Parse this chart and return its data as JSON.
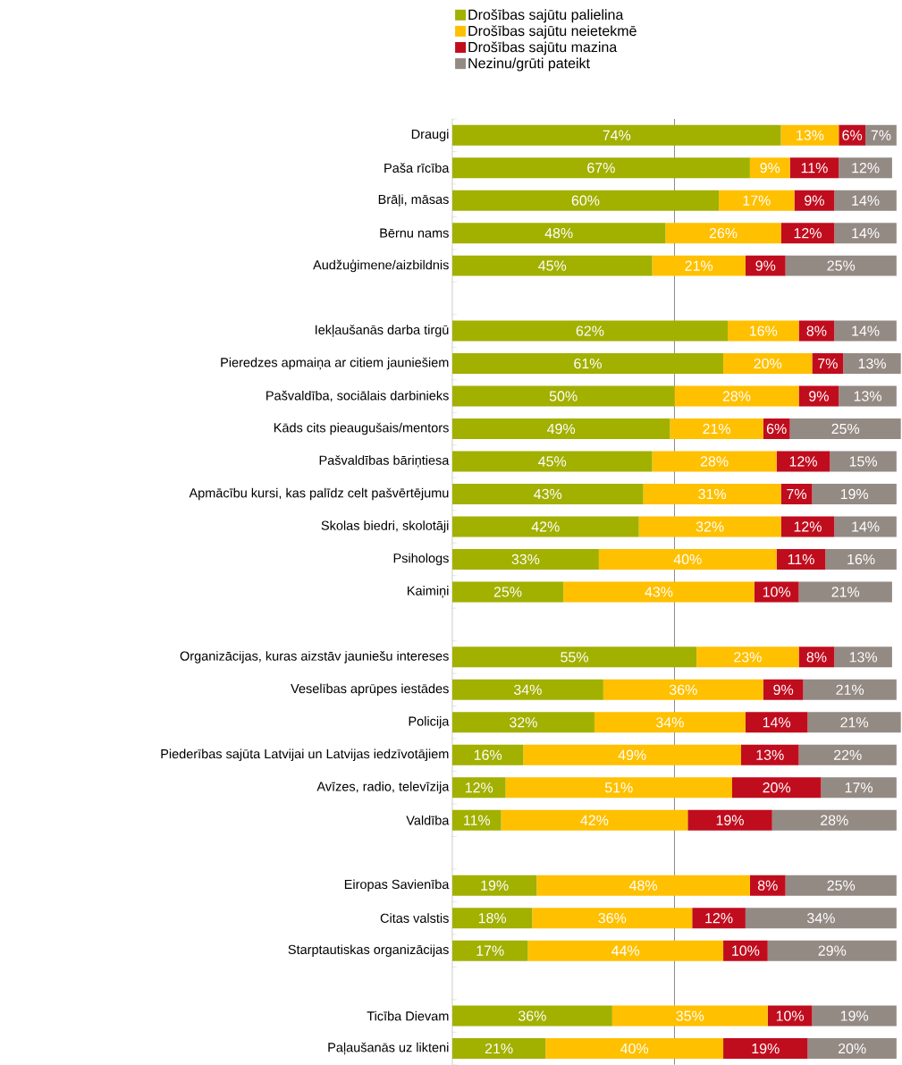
{
  "chart_data": {
    "type": "bar",
    "orientation": "horizontal",
    "stacked": true,
    "legend": "top",
    "tick_labels": "y",
    "grid": false,
    "xlim": [
      0,
      101
    ],
    "categories": [
      "Draugi",
      "Paša rīcība",
      "Brāļi, māsas",
      "Bērnu nams",
      "Audžuģimene/aizbildnis",
      null,
      "Iekļaušanās darba tirgū",
      "Pieredzes apmaiņa ar citiem jauniešiem",
      "Pašvaldība, sociālais darbinieks",
      "Kāds cits pieaugušais/mentors",
      "Pašvaldības bāriņtiesa",
      "Apmācību kursi, kas palīdz celt pašvērtējumu",
      "Skolas biedri, skolotāji",
      "Psihologs",
      "Kaimiņi",
      null,
      "Organizācijas, kuras aizstāv jauniešu intereses",
      "Veselības aprūpes iestādes",
      "Policija",
      "Piederības sajūta Latvijai un Latvijas iedzīvotājiem",
      "Avīzes, radio, televīzija",
      "Valdība",
      null,
      "Eiropas Savienība",
      "Citas valstis",
      "Starptautiskas organizācijas",
      null,
      "Ticība Dievam",
      "Paļaušanās uz likteni"
    ],
    "series": [
      {
        "name": "Drošības sajūtu palielina",
        "color": "#a2b000",
        "values": [
          74,
          67,
          60,
          48,
          45,
          null,
          62,
          61,
          50,
          49,
          45,
          43,
          42,
          33,
          25,
          null,
          55,
          34,
          32,
          16,
          12,
          11,
          null,
          19,
          18,
          17,
          null,
          36,
          21
        ],
        "value_labels": [
          "74%",
          "67%",
          "60%",
          "48%",
          "45%",
          null,
          "62%",
          "61%",
          "50%",
          "49%",
          "45%",
          "43%",
          "42%",
          "33%",
          "25%",
          null,
          "55%",
          "34%",
          "32%",
          "16%",
          "12%",
          "11%",
          null,
          "19%",
          "18%",
          "17%",
          null,
          "36%",
          "21%"
        ]
      },
      {
        "name": "Drošības sajūtu neietekmē",
        "color": "#ffc000",
        "values": [
          13,
          9,
          17,
          26,
          21,
          null,
          16,
          20,
          28,
          21,
          28,
          31,
          32,
          40,
          43,
          null,
          23,
          36,
          34,
          49,
          51,
          42,
          null,
          48,
          36,
          44,
          null,
          35,
          40
        ],
        "value_labels": [
          "13%",
          "9%",
          "17%",
          "26%",
          "21%",
          null,
          "16%",
          "20%",
          "28%",
          "21%",
          "28%",
          "31%",
          "32%",
          "40%",
          "43%",
          null,
          "23%",
          "36%",
          "34%",
          "49%",
          "51%",
          "42%",
          null,
          "48%",
          "36%",
          "44%",
          null,
          "35%",
          "40%"
        ]
      },
      {
        "name": "Drošības sajūtu mazina",
        "color": "#c00d1e",
        "values": [
          6,
          11,
          9,
          12,
          9,
          null,
          8,
          7,
          9,
          6,
          12,
          7,
          12,
          11,
          10,
          null,
          8,
          9,
          14,
          13,
          20,
          19,
          null,
          8,
          12,
          10,
          null,
          10,
          19
        ],
        "value_labels": [
          "6%",
          "11%",
          "9%",
          "12%",
          "9%",
          null,
          "8%",
          "7%",
          "9%",
          "6%",
          "12%",
          "7%",
          "12%",
          "11%",
          "10%",
          null,
          "8%",
          "9%",
          "14%",
          "13%",
          "20%",
          "19%",
          null,
          "8%",
          "12%",
          "10%",
          null,
          "10%",
          "19%"
        ]
      },
      {
        "name": "Nezinu/grūti pateikt",
        "color": "#948a84",
        "values": [
          7,
          12,
          14,
          14,
          25,
          null,
          14,
          13,
          13,
          25,
          15,
          19,
          14,
          16,
          21,
          null,
          13,
          21,
          21,
          22,
          17,
          28,
          null,
          25,
          34,
          29,
          null,
          19,
          20
        ],
        "value_labels": [
          "7%",
          "12%",
          "14%",
          "14%",
          "25%",
          null,
          "14%",
          "13%",
          "13%",
          "25%",
          "15%",
          "19%",
          "14%",
          "16%",
          "21%",
          null,
          "13%",
          "21%",
          "21%",
          "22%",
          "17%",
          "28%",
          null,
          "25%",
          "34%",
          "29%",
          null,
          "19%",
          "20%"
        ]
      }
    ],
    "ref_lines": [
      {
        "axis": "x",
        "value": 50,
        "color": "#7f7f7f"
      }
    ]
  }
}
